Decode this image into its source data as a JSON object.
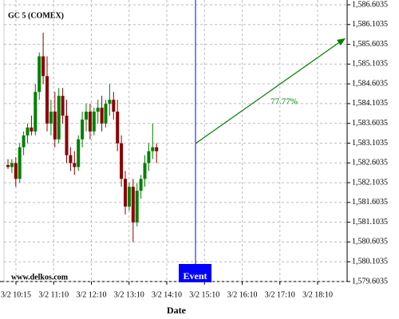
{
  "chart_data": {
    "type": "candlestick",
    "title": "GC 5 (COMEX)",
    "watermark": "www.delkos.com",
    "xlabel": "Date",
    "event_label": "Event",
    "annotation": "77.77%",
    "up_color": "#008000",
    "down_color": "#8b0000",
    "event_color": "#0000ff",
    "arrow_color": "#008000",
    "grid": true,
    "xticks": [
      "3/2 10:15",
      "3/2 11:10",
      "3/2 12:10",
      "3/2 13:10",
      "3/2 14:10",
      "3/2 15:10",
      "3/2 16:10",
      "3/2 17:10",
      "3/2 18:10"
    ],
    "ylim": [
      1579.6035,
      1586.6035
    ],
    "yticks": [
      {
        "value": 1579.6035,
        "label": "1,579.6035"
      },
      {
        "value": 1580.1035,
        "label": "1,580.1035"
      },
      {
        "value": 1580.6035,
        "label": "1,580.6035"
      },
      {
        "value": 1581.1035,
        "label": "1,581.1035"
      },
      {
        "value": 1581.6035,
        "label": "1,581.6035"
      },
      {
        "value": 1582.1035,
        "label": "1,582.1035"
      },
      {
        "value": 1582.6035,
        "label": "1,582.6035"
      },
      {
        "value": 1583.1035,
        "label": "1,583.1035"
      },
      {
        "value": 1583.6035,
        "label": "1,583.6035"
      },
      {
        "value": 1584.1035,
        "label": "1,584.1035"
      },
      {
        "value": 1584.6035,
        "label": "1,584.6035"
      },
      {
        "value": 1585.1035,
        "label": "1,585.1035"
      },
      {
        "value": 1585.6035,
        "label": "1,585.6035"
      },
      {
        "value": 1586.1035,
        "label": "1,586.1035"
      },
      {
        "value": 1586.6035,
        "label": "1,586.6035"
      }
    ],
    "open": [
      1582.55,
      1582.5,
      1582.6,
      1582.2,
      1583.0,
      1583.3,
      1583.5,
      1583.4,
      1584.4,
      1585.3,
      1584.8,
      1583.6,
      1583.9,
      1583.2,
      1584.3,
      1583.8,
      1582.8,
      1582.6,
      1582.5,
      1583.2,
      1583.7,
      1583.9,
      1583.4,
      1583.9,
      1584.0,
      1583.6,
      1584.1,
      1584.2,
      1583.9,
      1583.1,
      1582.2,
      1581.5,
      1582.0,
      1581.1,
      1581.9,
      1582.2,
      1582.6,
      1582.9,
      1583.0
    ],
    "high": [
      1582.7,
      1582.7,
      1582.75,
      1583.1,
      1583.4,
      1583.6,
      1583.8,
      1584.6,
      1585.4,
      1585.9,
      1585.3,
      1584.2,
      1584.4,
      1584.5,
      1584.5,
      1584.2,
      1583.0,
      1582.9,
      1583.3,
      1583.9,
      1584.1,
      1584.1,
      1584.0,
      1584.2,
      1584.3,
      1584.2,
      1584.6,
      1584.4,
      1584.2,
      1583.3,
      1582.4,
      1582.1,
      1582.2,
      1582.1,
      1582.3,
      1582.8,
      1583.1,
      1583.6,
      1583.1
    ],
    "low": [
      1582.45,
      1582.35,
      1582.0,
      1582.1,
      1582.8,
      1583.1,
      1583.3,
      1583.3,
      1584.2,
      1584.6,
      1583.4,
      1583.3,
      1583.0,
      1583.1,
      1583.6,
      1582.6,
      1582.4,
      1582.3,
      1582.4,
      1583.0,
      1583.4,
      1583.2,
      1583.3,
      1583.6,
      1583.4,
      1583.5,
      1583.8,
      1583.7,
      1582.9,
      1582.0,
      1581.3,
      1581.4,
      1580.6,
      1581.0,
      1581.7,
      1582.0,
      1582.4,
      1582.7,
      1582.6
    ],
    "close": [
      1582.5,
      1582.6,
      1582.2,
      1583.0,
      1583.3,
      1583.5,
      1583.4,
      1584.4,
      1585.3,
      1584.8,
      1583.6,
      1583.9,
      1583.2,
      1584.3,
      1583.8,
      1582.8,
      1582.6,
      1582.5,
      1583.2,
      1583.7,
      1583.9,
      1583.4,
      1583.9,
      1584.0,
      1583.6,
      1584.1,
      1584.2,
      1583.9,
      1583.1,
      1582.2,
      1581.5,
      1582.0,
      1581.1,
      1581.9,
      1582.2,
      1582.6,
      1582.9,
      1583.0,
      1582.9
    ]
  }
}
